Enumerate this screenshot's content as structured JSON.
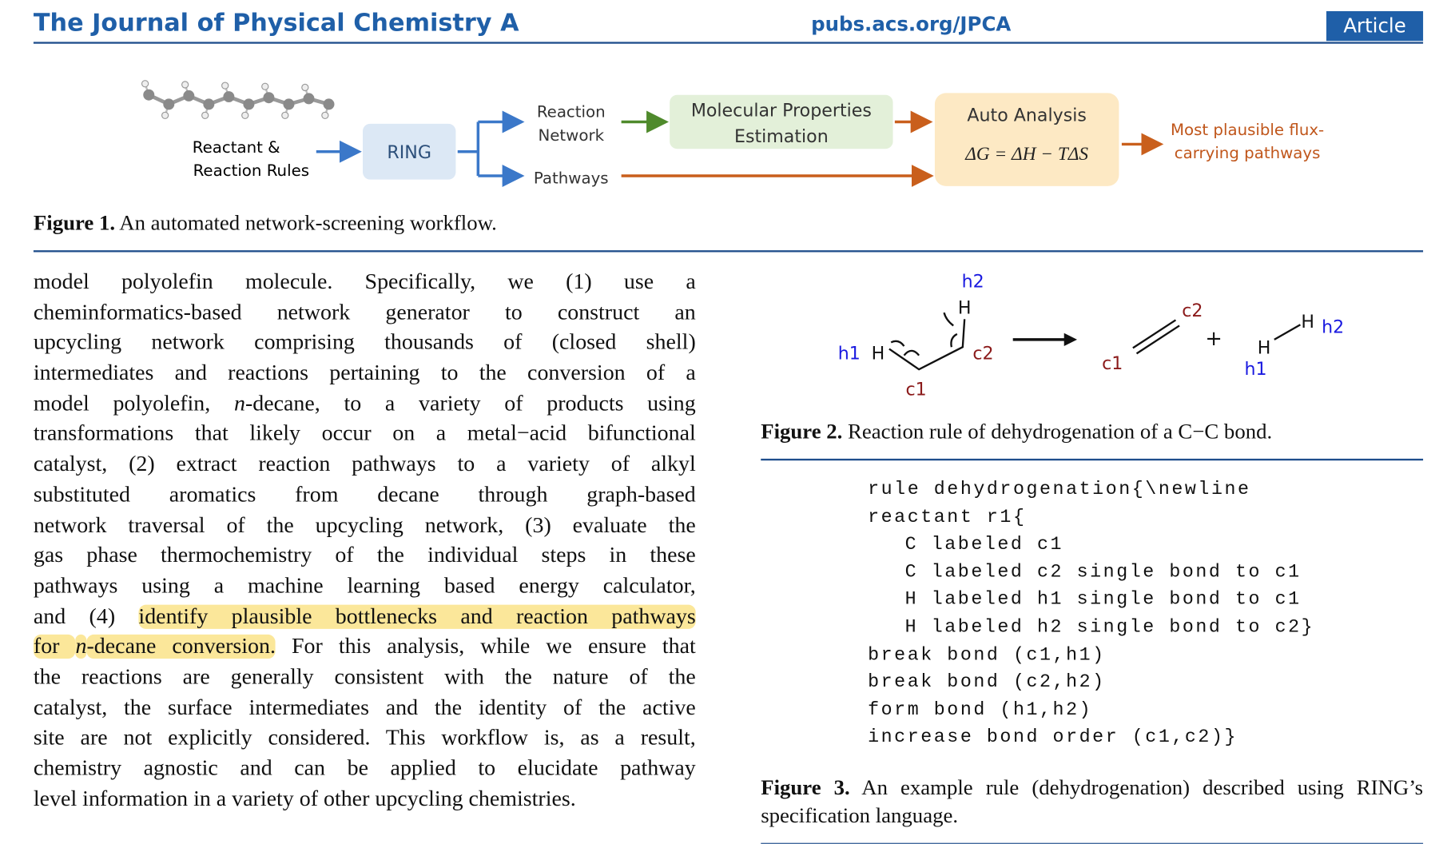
{
  "header": {
    "journal": "The Journal of Physical Chemistry A",
    "url": "pubs.acs.org/JPCA",
    "badge": "Article"
  },
  "figure1": {
    "nodes": {
      "reactant": [
        "Reactant &",
        "Reaction Rules"
      ],
      "ring": "RING",
      "network": [
        "Reaction",
        "Network"
      ],
      "pathways": "Pathways",
      "properties": [
        "Molecular Properties",
        "Estimation"
      ],
      "analysis": "Auto Analysis",
      "equation": "ΔG = ΔH − TΔS",
      "result": [
        "Most plausible flux-",
        "carrying pathways"
      ]
    },
    "caption": {
      "label": "Figure 1.",
      "text": " An automated network-screening workflow."
    }
  },
  "body": {
    "lines": [
      [
        {
          "text": "model polyolefin molecule. Specifically, we (1) use a"
        }
      ],
      [
        {
          "text": "cheminformatics-based network generator to construct an"
        }
      ],
      [
        {
          "text": "upcycling network comprising thousands of (closed shell)"
        }
      ],
      [
        {
          "text": "intermediates and reactions pertaining to the conversion of a"
        }
      ],
      [
        {
          "text": "model polyolefin, "
        },
        {
          "text": "n",
          "italic": true
        },
        {
          "text": "-decane, to a variety of products using"
        }
      ],
      [
        {
          "text": "transformations that likely occur on a metal−acid bifunctional"
        }
      ],
      [
        {
          "text": "catalyst, (2) extract reaction pathways to a variety of alkyl"
        }
      ],
      [
        {
          "text": "substituted aromatics from decane through graph-based"
        }
      ],
      [
        {
          "text": "network traversal of the upcycling network, (3) evaluate the"
        }
      ],
      [
        {
          "text": "gas phase thermochemistry of the individual steps in these"
        }
      ],
      [
        {
          "text": "pathways using a machine learning based energy calculator,"
        }
      ],
      [
        {
          "text": "and (4) "
        },
        {
          "text": "identify plausible bottlenecks and reaction pathways",
          "highlight": true
        }
      ],
      [
        {
          "text": "for ",
          "highlight": true
        },
        {
          "text": "n",
          "italic": true,
          "highlight": true
        },
        {
          "text": "-decane conversion.",
          "highlight": true
        },
        {
          "text": " For this analysis, while we ensure that"
        }
      ],
      [
        {
          "text": "the reactions are generally consistent with the nature of the"
        }
      ],
      [
        {
          "text": "catalyst, the surface intermediates and the identity of the active"
        }
      ],
      [
        {
          "text": "site are not explicitly considered. This workflow is, as a result,"
        }
      ],
      [
        {
          "text": "chemistry agnostic and can be applied to elucidate pathway"
        }
      ],
      [
        {
          "text": "level information in a variety of other upcycling chemistries."
        }
      ]
    ]
  },
  "figure2": {
    "labels": {
      "h2a": "h2",
      "Ha": "H",
      "h1a": "h1",
      "Hb": "H",
      "c2a": "c2",
      "c1a": "c1",
      "c2b": "c2",
      "c1b": "c1",
      "plus": "+",
      "Hc": "H",
      "Hd": "H",
      "h2b": "h2",
      "h1b": "h1"
    },
    "caption": {
      "label": "Figure 2.",
      "text": " Reaction rule of dehydrogenation of a C−C bond."
    }
  },
  "figure3": {
    "code": [
      {
        "text": "rule dehydrogenation{\\newline",
        "indent": 0
      },
      {
        "text": "reactant r1{",
        "indent": 0
      },
      {
        "text": "C labeled c1",
        "indent": 1
      },
      {
        "text": "C labeled c2 single bond to c1",
        "indent": 1
      },
      {
        "text": "H labeled h1 single bond to c1",
        "indent": 1
      },
      {
        "text": "H labeled h2 single bond to c2}",
        "indent": 1
      },
      {
        "text": "break bond (c1,h1)",
        "indent": 0
      },
      {
        "text": "break bond (c2,h2)",
        "indent": 0
      },
      {
        "text": "form bond (h1,h2)",
        "indent": 0
      },
      {
        "text": "increase bond order (c1,c2)}",
        "indent": 0
      }
    ],
    "caption": {
      "label": "Figure 3.",
      "text": " An example rule (dehydrogenation) described using RING’s specification language."
    }
  }
}
